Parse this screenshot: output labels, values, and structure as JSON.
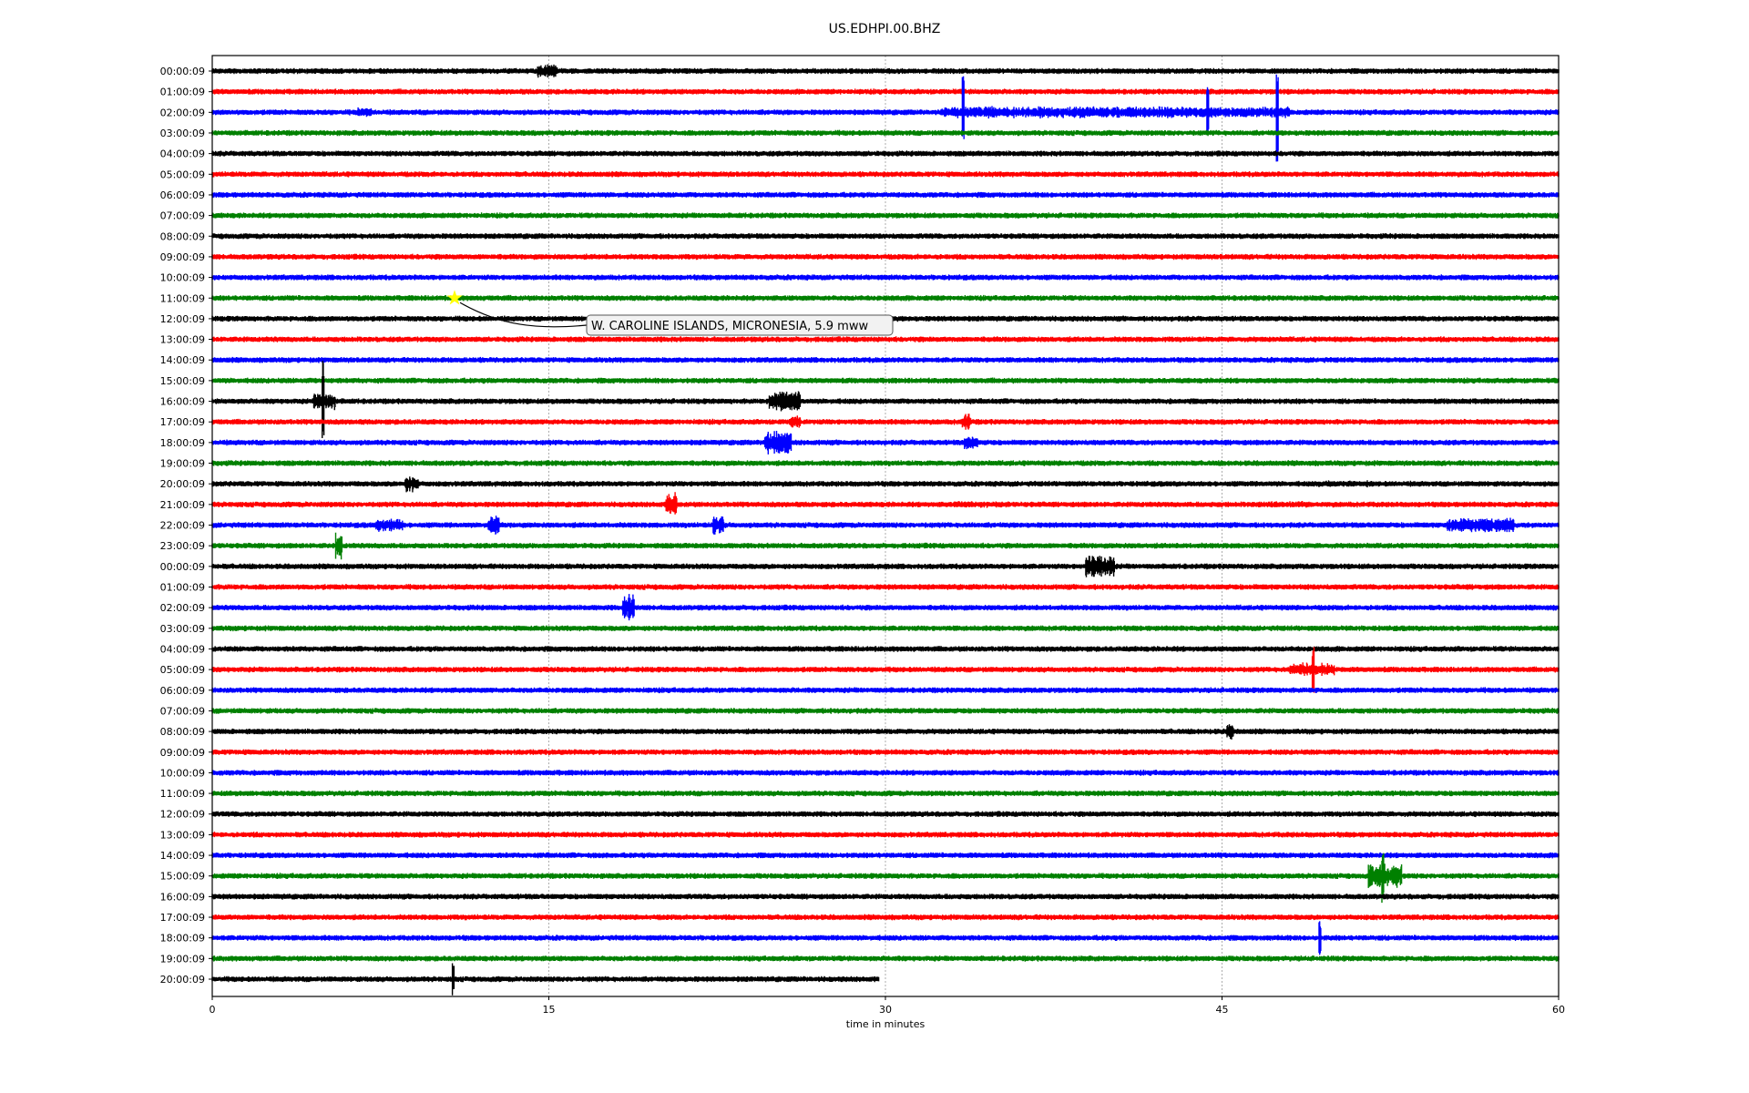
{
  "chart_data": {
    "type": "line",
    "title": "US.EDHPI.00.BHZ",
    "xlabel": "time in minutes",
    "ylabel": "",
    "xlim": [
      0,
      60
    ],
    "xticks": [
      "0",
      "15",
      "30",
      "45",
      "60"
    ],
    "xtick_values": [
      0,
      15,
      30,
      45,
      60
    ],
    "grid": "vertical dotted at x ticks",
    "colors": [
      "#000000",
      "#ff0000",
      "#0000ff",
      "#008000"
    ],
    "row_labels": [
      "00:00:09",
      "01:00:09",
      "02:00:09",
      "03:00:09",
      "04:00:09",
      "05:00:09",
      "06:00:09",
      "07:00:09",
      "08:00:09",
      "09:00:09",
      "10:00:09",
      "11:00:09",
      "12:00:09",
      "13:00:09",
      "14:00:09",
      "15:00:09",
      "16:00:09",
      "17:00:09",
      "18:00:09",
      "19:00:09",
      "20:00:09",
      "21:00:09",
      "22:00:09",
      "23:00:09",
      "00:00:09",
      "01:00:09",
      "02:00:09",
      "03:00:09",
      "04:00:09",
      "05:00:09",
      "06:00:09",
      "07:00:09",
      "08:00:09",
      "09:00:09",
      "10:00:09",
      "11:00:09",
      "12:00:09",
      "13:00:09",
      "14:00:09",
      "15:00:09",
      "16:00:09",
      "17:00:09",
      "18:00:09",
      "19:00:09",
      "20:00:09"
    ],
    "last_row_end_minute": 29.7,
    "events": [
      {
        "row": 0,
        "t": 14.5,
        "dur": 0.9,
        "amp": 8
      },
      {
        "row": 2,
        "t": 6.5,
        "dur": 0.6,
        "amp": 6
      },
      {
        "row": 2,
        "t": 32.5,
        "dur": 15.5,
        "amp": 7
      },
      {
        "row": 2,
        "t": 33.4,
        "dur": 0.1,
        "amp": 40
      },
      {
        "row": 2,
        "t": 44.3,
        "dur": 0.1,
        "amp": 32
      },
      {
        "row": 2,
        "t": 47.4,
        "dur": 0.1,
        "amp": 55
      },
      {
        "row": 16,
        "t": 4.5,
        "dur": 1.0,
        "amp": 10
      },
      {
        "row": 16,
        "t": 4.9,
        "dur": 0.1,
        "amp": 45
      },
      {
        "row": 16,
        "t": 24.8,
        "dur": 1.4,
        "amp": 12
      },
      {
        "row": 17,
        "t": 25.7,
        "dur": 0.5,
        "amp": 8
      },
      {
        "row": 17,
        "t": 33.4,
        "dur": 0.4,
        "amp": 10
      },
      {
        "row": 18,
        "t": 24.6,
        "dur": 1.2,
        "amp": 14
      },
      {
        "row": 18,
        "t": 33.5,
        "dur": 0.6,
        "amp": 9
      },
      {
        "row": 20,
        "t": 8.6,
        "dur": 0.6,
        "amp": 10
      },
      {
        "row": 20,
        "t": 49.2,
        "dur": 2.5,
        "amp": 4
      },
      {
        "row": 21,
        "t": 20.2,
        "dur": 0.5,
        "amp": 14
      },
      {
        "row": 21,
        "t": 33.0,
        "dur": 2.5,
        "amp": 4
      },
      {
        "row": 21,
        "t": 46.5,
        "dur": 2.5,
        "amp": 4
      },
      {
        "row": 22,
        "t": 7.3,
        "dur": 1.2,
        "amp": 8
      },
      {
        "row": 22,
        "t": 12.3,
        "dur": 0.5,
        "amp": 12
      },
      {
        "row": 22,
        "t": 22.3,
        "dur": 0.5,
        "amp": 12
      },
      {
        "row": 22,
        "t": 55.0,
        "dur": 3.0,
        "amp": 9
      },
      {
        "row": 23,
        "t": 5.5,
        "dur": 0.3,
        "amp": 16
      },
      {
        "row": 24,
        "t": 38.9,
        "dur": 1.3,
        "amp": 14
      },
      {
        "row": 26,
        "t": 18.3,
        "dur": 0.5,
        "amp": 16
      },
      {
        "row": 29,
        "t": 48.0,
        "dur": 2.0,
        "amp": 8
      },
      {
        "row": 29,
        "t": 49.0,
        "dur": 0.1,
        "amp": 28
      },
      {
        "row": 32,
        "t": 45.2,
        "dur": 0.3,
        "amp": 10
      },
      {
        "row": 39,
        "t": 51.5,
        "dur": 1.5,
        "amp": 14
      },
      {
        "row": 39,
        "t": 52.1,
        "dur": 0.1,
        "amp": 30
      },
      {
        "row": 42,
        "t": 49.3,
        "dur": 0.1,
        "amp": 20
      },
      {
        "row": 44,
        "t": 10.7,
        "dur": 0.1,
        "amp": 18
      }
    ],
    "annotation": {
      "text": "W. CAROLINE ISLANDS, MICRONESIA, 5.9 mww",
      "row": 11,
      "minute": 10.8,
      "marker": "yellow star",
      "marker_color": "#ffff00"
    }
  }
}
